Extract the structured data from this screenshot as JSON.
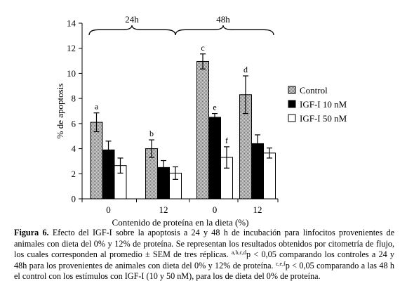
{
  "chart_data": {
    "type": "bar",
    "ylabel": "% de apoptosis",
    "xlabel": "Contenido de proteína en la dieta (%)",
    "ylim": [
      0,
      14
    ],
    "yticks": [
      0,
      2,
      4,
      6,
      8,
      10,
      12,
      14
    ],
    "categories": [
      "0",
      "12",
      "0",
      "12"
    ],
    "groups": [
      {
        "label": "24h",
        "categories": [
          0,
          1
        ]
      },
      {
        "label": "48h",
        "categories": [
          2,
          3
        ]
      }
    ],
    "series": [
      {
        "name": "Control",
        "color": "#b8b8b8",
        "pattern": "dots",
        "values": [
          6.1,
          4.0,
          10.95,
          8.3
        ],
        "errors": [
          0.75,
          0.7,
          0.6,
          1.5
        ],
        "annotations": [
          "a",
          "b",
          "c",
          "d"
        ]
      },
      {
        "name": "IGF-I 10 nM",
        "color": "#000000",
        "pattern": "solid",
        "values": [
          3.9,
          2.5,
          6.5,
          4.4
        ],
        "errors": [
          0.7,
          0.55,
          0.3,
          0.7
        ],
        "annotations": [
          "",
          "",
          "e",
          ""
        ]
      },
      {
        "name": "IGF-I 50 nM",
        "color": "#ffffff",
        "pattern": "solid",
        "values": [
          2.65,
          2.05,
          3.3,
          3.65
        ],
        "errors": [
          0.6,
          0.5,
          0.85,
          0.4
        ],
        "annotations": [
          "",
          "",
          "f",
          ""
        ]
      }
    ],
    "grid": false,
    "legend_position": "right"
  },
  "caption": {
    "label": "Figura 6.",
    "text_1": " Efecto del IGF-I sobre la apoptosis a 24 y 48 h de incubación para linfocitos provenientes de animales con dieta del 0% y 12% de proteína. Se representan los resultados obtenidos por citometría de flujo, los cuales corresponden al promedio ± SEM de tres réplicas. ",
    "sup_1": "a,b,c,d",
    "text_2": "p < 0,05 comparando los controles a 24 y 48h para los provenientes de animales con dieta del 0% y 12% de proteína. ",
    "sup_2": "c,e,f",
    "text_3": "p < 0,05 comparando a las 48 h el control con los estímulos con IGF-I (10 y 50 nM), para los de dieta del 0% de proteína."
  }
}
